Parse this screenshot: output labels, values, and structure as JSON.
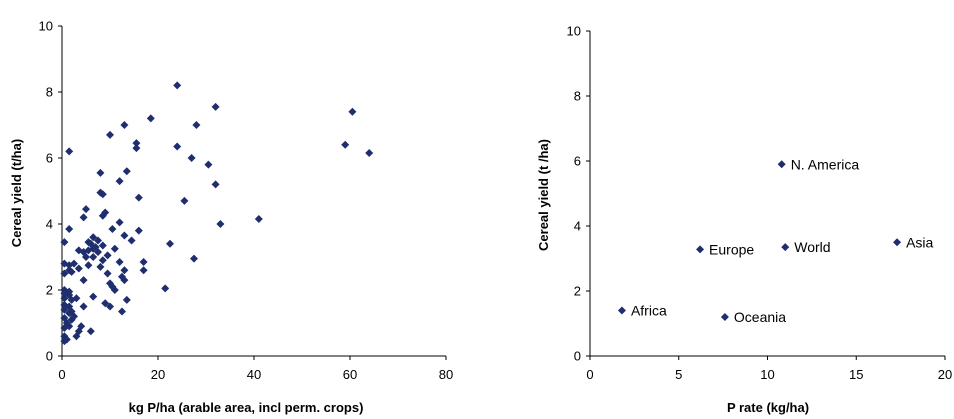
{
  "chart_data": [
    {
      "type": "scatter",
      "xlabel": "kg P/ha (arable area, incl perm. crops)",
      "ylabel": "Cereal  yield (t/ha)",
      "xlim": [
        0,
        80
      ],
      "ylim": [
        0,
        10
      ],
      "xticks": [
        "0",
        "20",
        "40",
        "60",
        "80"
      ],
      "yticks": [
        "0",
        "2",
        "4",
        "6",
        "8",
        "10"
      ],
      "grid": false,
      "marker_color": "#1f2f6e",
      "points": [
        [
          24,
          8.2
        ],
        [
          32,
          7.55
        ],
        [
          18.5,
          7.2
        ],
        [
          13,
          7.0
        ],
        [
          28,
          7.0
        ],
        [
          10,
          6.7
        ],
        [
          15.5,
          6.45
        ],
        [
          15.5,
          6.3
        ],
        [
          24,
          6.35
        ],
        [
          1.5,
          6.2
        ],
        [
          27,
          6.0
        ],
        [
          30.5,
          5.8
        ],
        [
          8,
          5.55
        ],
        [
          13.5,
          5.6
        ],
        [
          12,
          5.3
        ],
        [
          32,
          5.2
        ],
        [
          8,
          4.95
        ],
        [
          8.5,
          4.9
        ],
        [
          16,
          4.8
        ],
        [
          25.5,
          4.7
        ],
        [
          5,
          4.45
        ],
        [
          9,
          4.35
        ],
        [
          8.5,
          4.25
        ],
        [
          4.5,
          4.2
        ],
        [
          41,
          4.15
        ],
        [
          12,
          4.05
        ],
        [
          33,
          4.0
        ],
        [
          1.5,
          3.85
        ],
        [
          10.5,
          3.85
        ],
        [
          16,
          3.8
        ],
        [
          13,
          3.65
        ],
        [
          14.5,
          3.5
        ],
        [
          6.5,
          3.6
        ],
        [
          7.5,
          3.5
        ],
        [
          5.5,
          3.45
        ],
        [
          6,
          3.4
        ],
        [
          8.5,
          3.35
        ],
        [
          11,
          3.25
        ],
        [
          7,
          3.3
        ],
        [
          6.5,
          3.25
        ],
        [
          5.5,
          3.2
        ],
        [
          0.5,
          3.45
        ],
        [
          22.5,
          3.4
        ],
        [
          3.5,
          3.2
        ],
        [
          4.5,
          3.15
        ],
        [
          7.5,
          3.15
        ],
        [
          9.5,
          3.05
        ],
        [
          6.5,
          3.0
        ],
        [
          5,
          3.0
        ],
        [
          27.5,
          2.95
        ],
        [
          8.5,
          2.9
        ],
        [
          12,
          2.85
        ],
        [
          17,
          2.85
        ],
        [
          0.5,
          2.8
        ],
        [
          2.5,
          2.8
        ],
        [
          1.5,
          2.75
        ],
        [
          5.5,
          2.75
        ],
        [
          8,
          2.7
        ],
        [
          3.5,
          2.65
        ],
        [
          1.5,
          2.6
        ],
        [
          2,
          2.55
        ],
        [
          0.5,
          2.5
        ],
        [
          13,
          2.6
        ],
        [
          17,
          2.6
        ],
        [
          9.5,
          2.5
        ],
        [
          12.5,
          2.4
        ],
        [
          13,
          2.3
        ],
        [
          4.5,
          2.3
        ],
        [
          10,
          2.2
        ],
        [
          10.5,
          2.1
        ],
        [
          21.5,
          2.05
        ],
        [
          11,
          2.0
        ],
        [
          0.5,
          2.0
        ],
        [
          1.5,
          1.95
        ],
        [
          0.5,
          1.9
        ],
        [
          1.5,
          1.85
        ],
        [
          0.5,
          1.75
        ],
        [
          2,
          1.7
        ],
        [
          3,
          1.75
        ],
        [
          6.5,
          1.8
        ],
        [
          13.5,
          1.7
        ],
        [
          9,
          1.6
        ],
        [
          0.5,
          1.55
        ],
        [
          1.5,
          1.5
        ],
        [
          4.5,
          1.5
        ],
        [
          10,
          1.5
        ],
        [
          0.5,
          1.4
        ],
        [
          2,
          1.35
        ],
        [
          1.5,
          1.3
        ],
        [
          12.5,
          1.35
        ],
        [
          2.5,
          1.2
        ],
        [
          0.5,
          1.15
        ],
        [
          2,
          1.1
        ],
        [
          1,
          1.0
        ],
        [
          1.5,
          0.9
        ],
        [
          0.5,
          0.85
        ],
        [
          4,
          0.9
        ],
        [
          3.5,
          0.75
        ],
        [
          6,
          0.75
        ],
        [
          0.5,
          0.6
        ],
        [
          3,
          0.6
        ],
        [
          1,
          0.5
        ],
        [
          0.5,
          0.45
        ],
        [
          59,
          6.4
        ],
        [
          60.5,
          7.4
        ],
        [
          64,
          6.15
        ]
      ]
    },
    {
      "type": "scatter",
      "xlabel": "P rate (kg/ha)",
      "ylabel": "Cereal yield (t /ha)",
      "xlim": [
        0,
        20
      ],
      "ylim": [
        0,
        10
      ],
      "xticks": [
        "0",
        "5",
        "10",
        "15",
        "20"
      ],
      "yticks": [
        "0",
        "2",
        "4",
        "6",
        "8",
        "10"
      ],
      "grid": false,
      "marker_color": "#1f2f6e",
      "points": [
        {
          "label": "N. America",
          "x": 10.8,
          "y": 5.9
        },
        {
          "label": "Europe",
          "x": 6.2,
          "y": 3.28
        },
        {
          "label": "World",
          "x": 11.0,
          "y": 3.35
        },
        {
          "label": "Asia",
          "x": 17.3,
          "y": 3.5
        },
        {
          "label": "Africa",
          "x": 1.8,
          "y": 1.4
        },
        {
          "label": "Oceania",
          "x": 7.6,
          "y": 1.2
        }
      ]
    }
  ]
}
